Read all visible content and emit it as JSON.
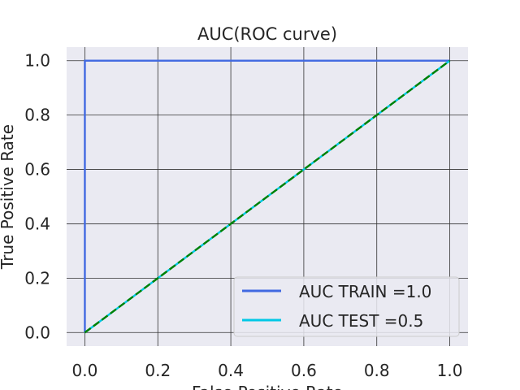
{
  "chart_data": {
    "type": "line",
    "title": "AUC(ROC curve)",
    "xlabel": "False Positive Rate",
    "ylabel": "True Positive Rate",
    "xlim": [
      -0.05,
      1.05
    ],
    "ylim": [
      -0.05,
      1.05
    ],
    "xticks": [
      0.0,
      0.2,
      0.4,
      0.6,
      0.8,
      1.0
    ],
    "yticks": [
      0.0,
      0.2,
      0.4,
      0.6,
      0.8,
      1.0
    ],
    "xtick_labels": [
      "0.0",
      "0.2",
      "0.4",
      "0.6",
      "0.8",
      "1.0"
    ],
    "ytick_labels": [
      "0.0",
      "0.2",
      "0.4",
      "0.6",
      "0.8",
      "1.0"
    ],
    "grid": true,
    "legend_position": "lower-right",
    "series": [
      {
        "name": "AUC TRAIN =1.0",
        "color": "#4169e1",
        "style": "solid",
        "x": [
          0.0,
          0.0,
          1.0
        ],
        "y": [
          0.0,
          1.0,
          1.0
        ]
      },
      {
        "name": "AUC TEST =0.5",
        "color": "#00c8e6",
        "style": "solid",
        "x": [
          0.0,
          1.0
        ],
        "y": [
          0.0,
          1.0
        ]
      }
    ],
    "reference_line": {
      "color": "#008000",
      "style": "dashed",
      "x": [
        0.0,
        1.0
      ],
      "y": [
        0.0,
        1.0
      ]
    }
  }
}
